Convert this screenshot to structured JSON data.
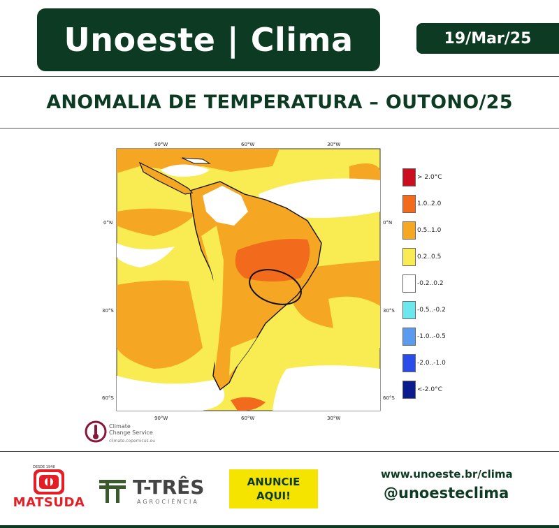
{
  "header": {
    "title": "Unoeste | Clima",
    "date": "19/Mar/25",
    "subtitle": "ANOMALIA DE TEMPERATURA – OUTONO/25"
  },
  "map": {
    "region": "South America",
    "top_ticks": [
      "90°W",
      "60°W",
      "30°W"
    ],
    "bottom_ticks": [
      "90°W",
      "60°W",
      "30°W"
    ],
    "left_ticks": [
      "0°N",
      "30°S",
      "60°S"
    ],
    "right_ticks": [
      "0°N",
      "30°S",
      "60°S"
    ],
    "highlight": "ellipse",
    "colors": {
      "ocean_light": "#f8ec52",
      "ocean_orange": "#f5a623",
      "warm_core": "#f26a1b",
      "neutral": "#ffffff"
    }
  },
  "legend": {
    "items": [
      {
        "label": "> 2.0°C",
        "color": "#cc0d1d"
      },
      {
        "label": "1.0..2.0",
        "color": "#f26a1b"
      },
      {
        "label": "0.5..1.0",
        "color": "#f5a623"
      },
      {
        "label": "0.2..0.5",
        "color": "#f8ec52"
      },
      {
        "label": "-0.2..0.2",
        "color": "#ffffff"
      },
      {
        "label": "-0.5..-0.2",
        "color": "#6ee6ee"
      },
      {
        "label": "-1.0..-0.5",
        "color": "#5b9bee"
      },
      {
        "label": "-2.0..-1.0",
        "color": "#2a4ce8"
      },
      {
        "label": "<-2.0°C",
        "color": "#0b1c8f"
      }
    ]
  },
  "source": {
    "name_line1": "Climate",
    "name_line2": "Change Service",
    "url": "climate.copernicus.eu"
  },
  "footer": {
    "sponsor1": "MATSUDA",
    "sponsor1_tagline": "DESDE 1948",
    "sponsor2": "T-TRÊS",
    "sponsor2_tagline": "AGROCIÊNCIA",
    "ad_line1": "ANUNCIE",
    "ad_line2": "AQUI!",
    "website": "www.unoeste.br/clima",
    "handle": "@unoesteclima"
  }
}
